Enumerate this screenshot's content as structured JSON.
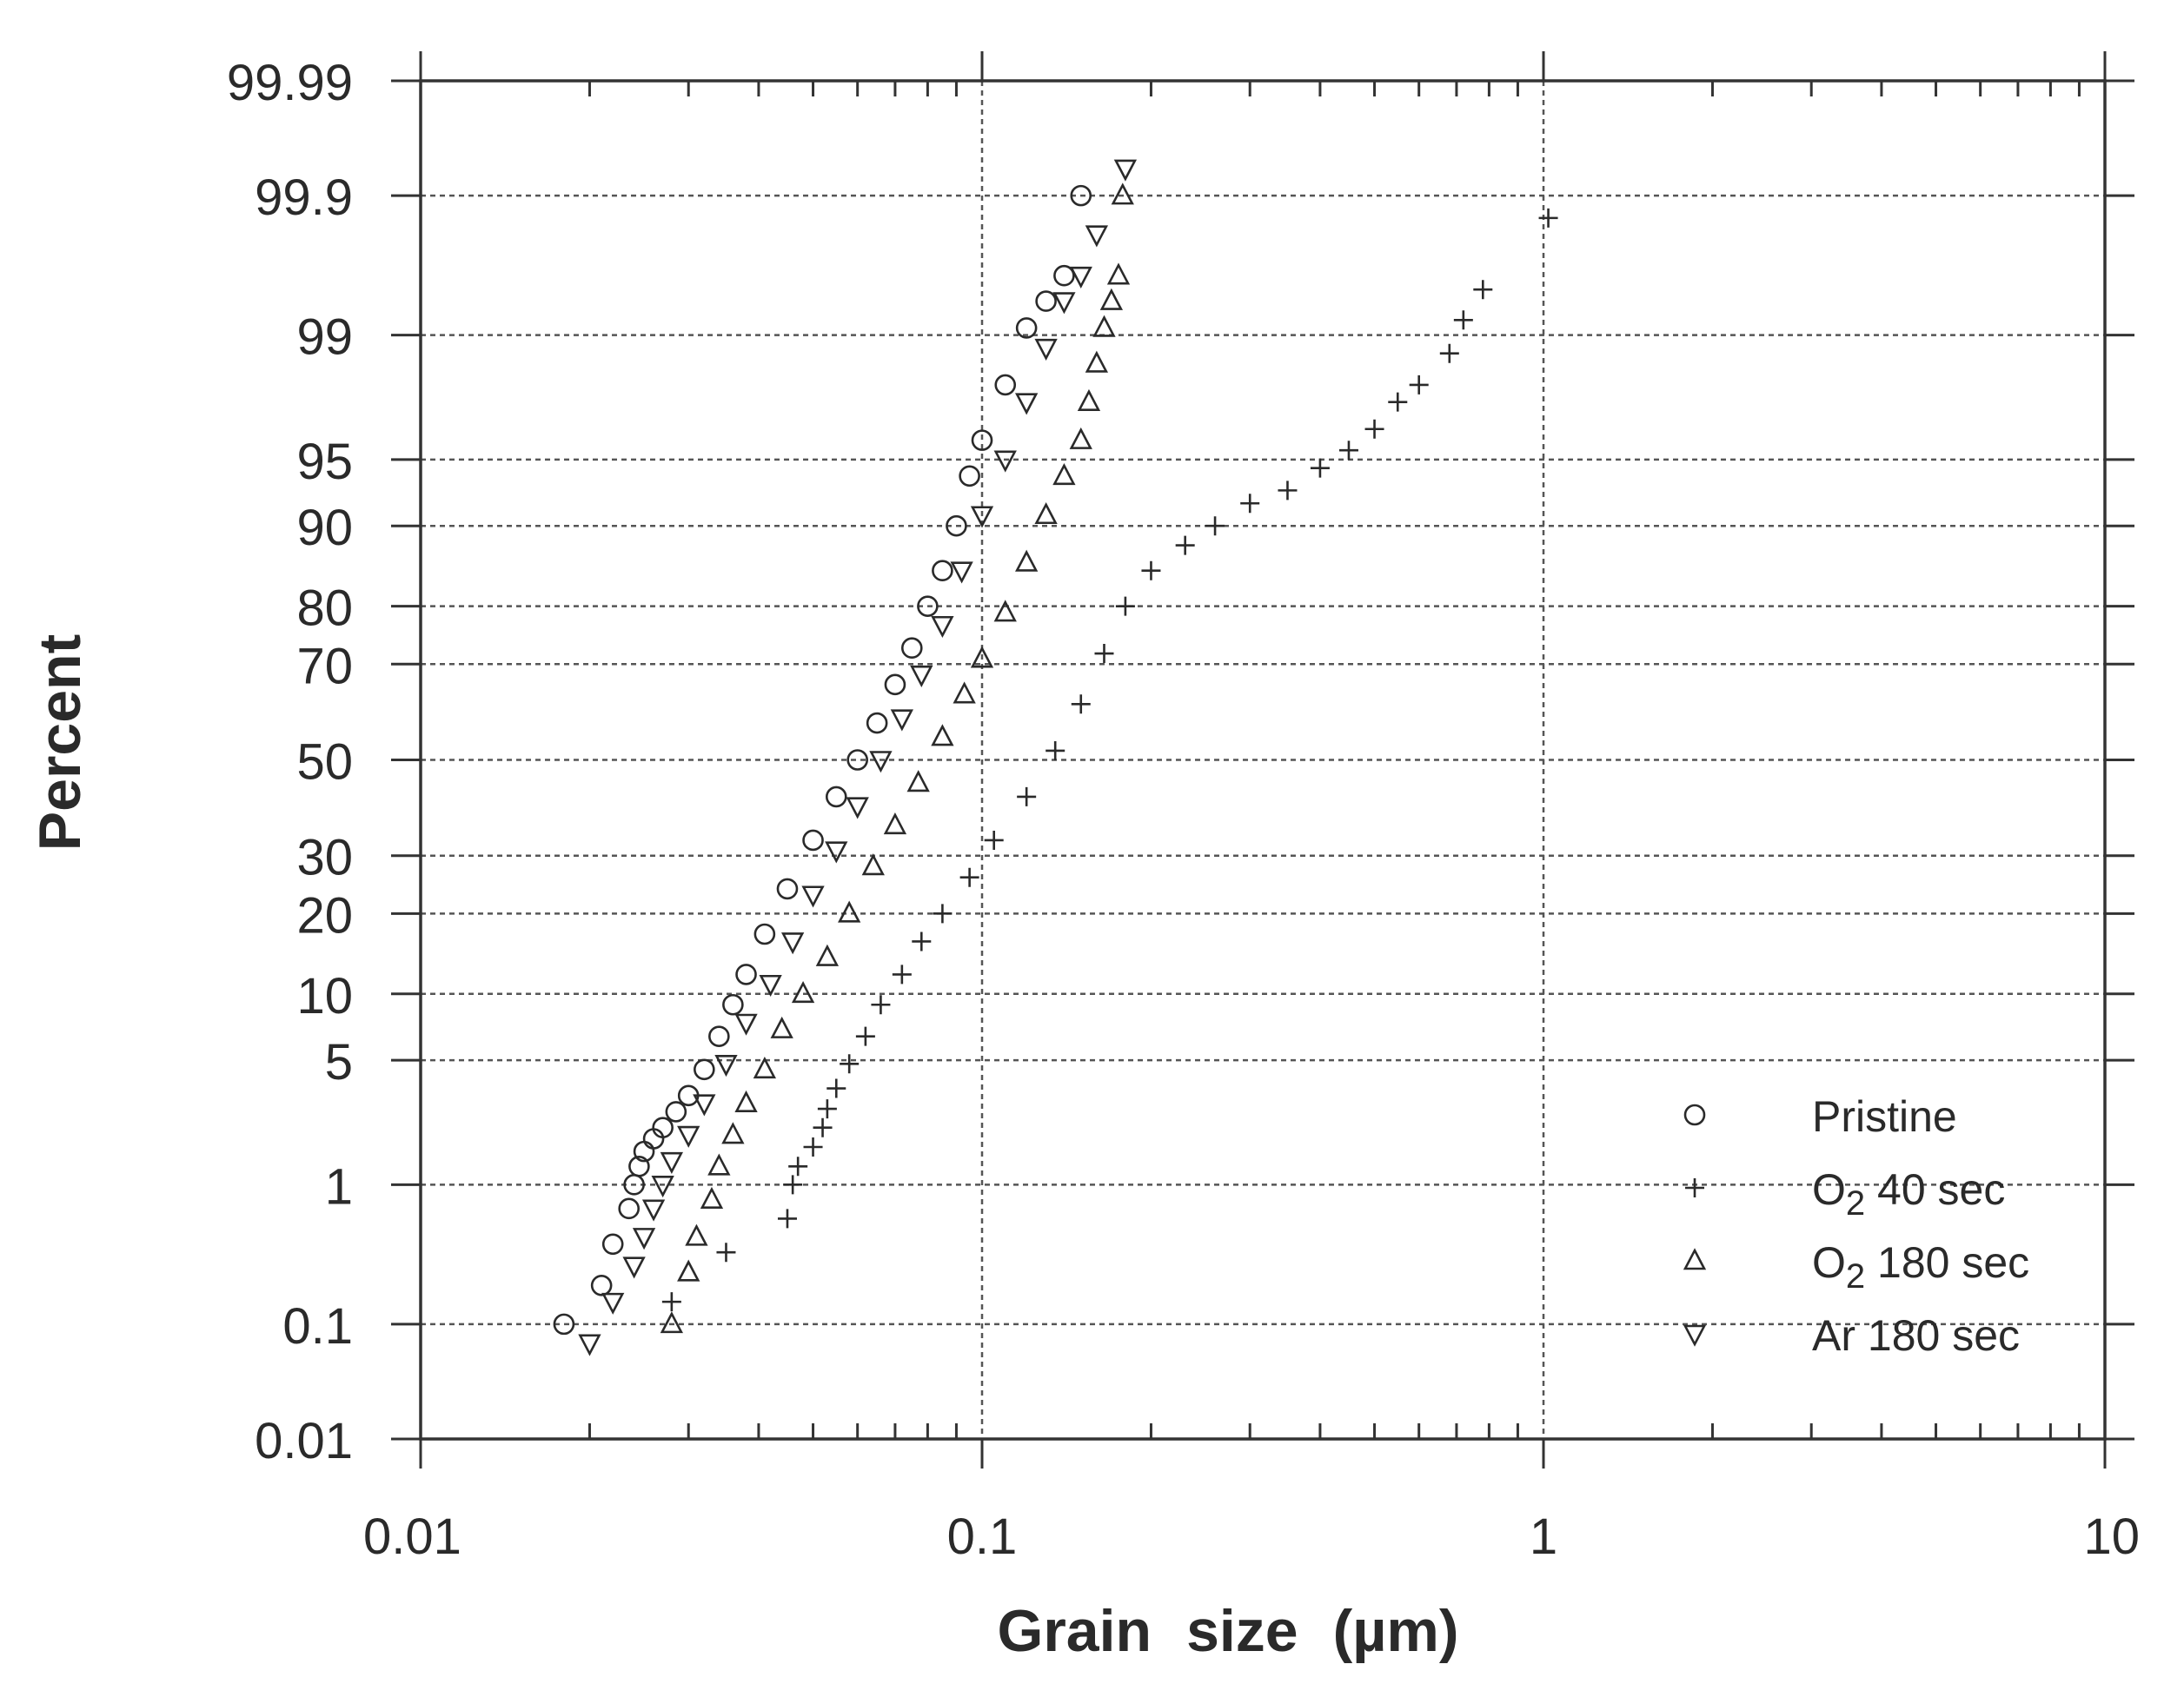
{
  "chart_data": {
    "type": "scatter",
    "title": "",
    "xlabel": "Grain size (µm)",
    "xlabel_parts": [
      "Grain",
      "size",
      "(µm)"
    ],
    "ylabel": "Percent",
    "xscale": "log",
    "yscale": "probability",
    "xlim": [
      0.01,
      10
    ],
    "ylim": [
      0.01,
      99.99
    ],
    "x_ticks": [
      {
        "value": 0.01,
        "label": "0.01"
      },
      {
        "value": 0.1,
        "label": "0.1"
      },
      {
        "value": 1,
        "label": "1"
      },
      {
        "value": 10,
        "label": "10"
      }
    ],
    "y_ticks": [
      {
        "value": 0.01,
        "label": "0.01"
      },
      {
        "value": 0.1,
        "label": "0.1"
      },
      {
        "value": 1,
        "label": "1"
      },
      {
        "value": 5,
        "label": "5"
      },
      {
        "value": 10,
        "label": "10"
      },
      {
        "value": 20,
        "label": "20"
      },
      {
        "value": 30,
        "label": "30"
      },
      {
        "value": 50,
        "label": "50"
      },
      {
        "value": 70,
        "label": "70"
      },
      {
        "value": 80,
        "label": "80"
      },
      {
        "value": 90,
        "label": "90"
      },
      {
        "value": 95,
        "label": "95"
      },
      {
        "value": 99,
        "label": "99"
      },
      {
        "value": 99.9,
        "label": "99.9"
      },
      {
        "value": 99.99,
        "label": "99.99"
      }
    ],
    "grid": true,
    "legend_position": "bottom-right",
    "series": [
      {
        "name": "Pristine",
        "label_main": "Pristine",
        "label_sub": "",
        "label_rest": "",
        "marker": "circle",
        "points": [
          [
            0.018,
            0.1
          ],
          [
            0.021,
            0.2
          ],
          [
            0.022,
            0.4
          ],
          [
            0.0235,
            0.7
          ],
          [
            0.024,
            1.0
          ],
          [
            0.0245,
            1.3
          ],
          [
            0.025,
            1.6
          ],
          [
            0.026,
            1.9
          ],
          [
            0.027,
            2.2
          ],
          [
            0.0285,
            2.7
          ],
          [
            0.03,
            3.3
          ],
          [
            0.032,
            4.5
          ],
          [
            0.034,
            6.5
          ],
          [
            0.036,
            9
          ],
          [
            0.038,
            12
          ],
          [
            0.041,
            17
          ],
          [
            0.045,
            24
          ],
          [
            0.05,
            33
          ],
          [
            0.055,
            42
          ],
          [
            0.06,
            50
          ],
          [
            0.065,
            58
          ],
          [
            0.07,
            66
          ],
          [
            0.075,
            73
          ],
          [
            0.08,
            80
          ],
          [
            0.085,
            85
          ],
          [
            0.09,
            90
          ],
          [
            0.095,
            94
          ],
          [
            0.1,
            96
          ],
          [
            0.11,
            98
          ],
          [
            0.12,
            99.1
          ],
          [
            0.13,
            99.4
          ],
          [
            0.14,
            99.6
          ],
          [
            0.15,
            99.9
          ]
        ]
      },
      {
        "name": "O2 40 sec",
        "label_main": "O",
        "label_sub": "2",
        "label_rest": " 40 sec",
        "marker": "plus",
        "points": [
          [
            0.028,
            0.15
          ],
          [
            0.035,
            0.35
          ],
          [
            0.045,
            0.6
          ],
          [
            0.046,
            1.0
          ],
          [
            0.047,
            1.3
          ],
          [
            0.05,
            1.7
          ],
          [
            0.052,
            2.2
          ],
          [
            0.053,
            2.8
          ],
          [
            0.055,
            3.6
          ],
          [
            0.058,
            4.8
          ],
          [
            0.062,
            6.5
          ],
          [
            0.066,
            9
          ],
          [
            0.072,
            12
          ],
          [
            0.078,
            16
          ],
          [
            0.085,
            20
          ],
          [
            0.095,
            26
          ],
          [
            0.105,
            33
          ],
          [
            0.12,
            42
          ],
          [
            0.135,
            52
          ],
          [
            0.15,
            62
          ],
          [
            0.165,
            72
          ],
          [
            0.18,
            80
          ],
          [
            0.2,
            85
          ],
          [
            0.23,
            88
          ],
          [
            0.26,
            90
          ],
          [
            0.3,
            92
          ],
          [
            0.35,
            93
          ],
          [
            0.4,
            94.5
          ],
          [
            0.45,
            95.5
          ],
          [
            0.5,
            96.5
          ],
          [
            0.55,
            97.5
          ],
          [
            0.6,
            98
          ],
          [
            0.68,
            98.7
          ],
          [
            0.72,
            99.2
          ],
          [
            0.78,
            99.5
          ],
          [
            1.02,
            99.85
          ]
        ]
      },
      {
        "name": "O2 180 sec",
        "label_main": "O",
        "label_sub": "2",
        "label_rest": " 180 sec",
        "marker": "triangle-up",
        "points": [
          [
            0.028,
            0.1
          ],
          [
            0.03,
            0.25
          ],
          [
            0.031,
            0.45
          ],
          [
            0.033,
            0.8
          ],
          [
            0.034,
            1.3
          ],
          [
            0.036,
            2
          ],
          [
            0.038,
            3
          ],
          [
            0.041,
            4.5
          ],
          [
            0.044,
            7
          ],
          [
            0.048,
            10
          ],
          [
            0.053,
            14
          ],
          [
            0.058,
            20
          ],
          [
            0.064,
            28
          ],
          [
            0.07,
            36
          ],
          [
            0.077,
            45
          ],
          [
            0.085,
            55
          ],
          [
            0.093,
            64
          ],
          [
            0.1,
            71
          ],
          [
            0.11,
            79
          ],
          [
            0.12,
            86
          ],
          [
            0.13,
            91
          ],
          [
            0.14,
            94
          ],
          [
            0.15,
            96
          ],
          [
            0.155,
            97.5
          ],
          [
            0.16,
            98.5
          ],
          [
            0.165,
            99.1
          ],
          [
            0.17,
            99.4
          ],
          [
            0.175,
            99.6
          ],
          [
            0.178,
            99.9
          ]
        ]
      },
      {
        "name": "Ar 180 sec",
        "label_main": "Ar 180 sec",
        "label_sub": "",
        "label_rest": "",
        "marker": "triangle-down",
        "points": [
          [
            0.02,
            0.07
          ],
          [
            0.022,
            0.15
          ],
          [
            0.024,
            0.28
          ],
          [
            0.025,
            0.45
          ],
          [
            0.026,
            0.7
          ],
          [
            0.027,
            1.0
          ],
          [
            0.028,
            1.4
          ],
          [
            0.03,
            2
          ],
          [
            0.032,
            3
          ],
          [
            0.035,
            4.8
          ],
          [
            0.038,
            7.5
          ],
          [
            0.042,
            11
          ],
          [
            0.046,
            16
          ],
          [
            0.05,
            23
          ],
          [
            0.055,
            31
          ],
          [
            0.06,
            40
          ],
          [
            0.066,
            50
          ],
          [
            0.072,
            59
          ],
          [
            0.078,
            68
          ],
          [
            0.085,
            77
          ],
          [
            0.092,
            85
          ],
          [
            0.1,
            91
          ],
          [
            0.11,
            95
          ],
          [
            0.12,
            97.5
          ],
          [
            0.13,
            98.8
          ],
          [
            0.14,
            99.4
          ],
          [
            0.15,
            99.6
          ],
          [
            0.16,
            99.8
          ],
          [
            0.18,
            99.94
          ]
        ]
      }
    ]
  }
}
